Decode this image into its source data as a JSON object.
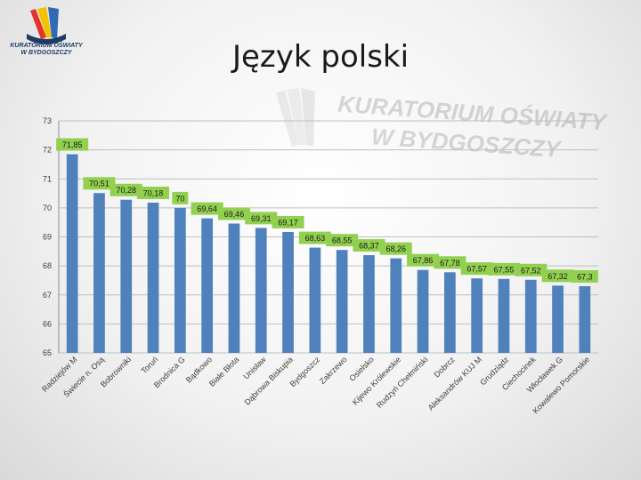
{
  "header": {
    "title": "Język polski",
    "logo_text_line1": "KURATORIUM OŚWIATY",
    "logo_text_line2": "W BYDGOSZCZY",
    "watermark_line1": "KURATORIUM OŚWIATY",
    "watermark_line2": "W BYDGOSZCZY"
  },
  "colors": {
    "bar": "#4f81bd",
    "label_bg": "#92d050",
    "grid": "#bfbfbf",
    "axis_text": "#404040"
  },
  "chart_data": {
    "type": "bar",
    "title": "",
    "xlabel": "",
    "ylabel": "",
    "ylim": [
      65,
      73
    ],
    "yticks": [
      65,
      66,
      67,
      68,
      69,
      70,
      71,
      72,
      73
    ],
    "grid": true,
    "categories": [
      "Radziejów M",
      "Świecie n. Osą",
      "Bobrowniki",
      "Toruń",
      "Brodnica G",
      "Bądkowo",
      "Białe Błota",
      "Unisław",
      "Dąbrowa Biskupia",
      "Bydgoszcz",
      "Zakrzewo",
      "Osielsko",
      "Kijewo Królewskie",
      "Rudzyń Chełmiński",
      "Dobrcz",
      "Aleksandrów KUJ M",
      "Grudziądz",
      "Ciechocinek",
      "Włocławek G",
      "Kowalewo Pomorskie"
    ],
    "series": [
      {
        "values": [
          71.85,
          70.51,
          70.28,
          70.18,
          70,
          69.64,
          69.46,
          69.31,
          69.17,
          68.63,
          68.55,
          68.37,
          68.26,
          67.86,
          67.78,
          67.57,
          67.55,
          67.52,
          67.32,
          67.3
        ],
        "data_labels": [
          "71,85",
          "70,51",
          "70,28",
          "70,18",
          "70",
          "69,64",
          "69,46",
          "69,31",
          "69,17",
          "68,63",
          "68,55",
          "68,37",
          "68,26",
          "67,86",
          "67,78",
          "67,57",
          "67,55",
          "67,52",
          "67,32",
          "67,3"
        ]
      }
    ]
  }
}
